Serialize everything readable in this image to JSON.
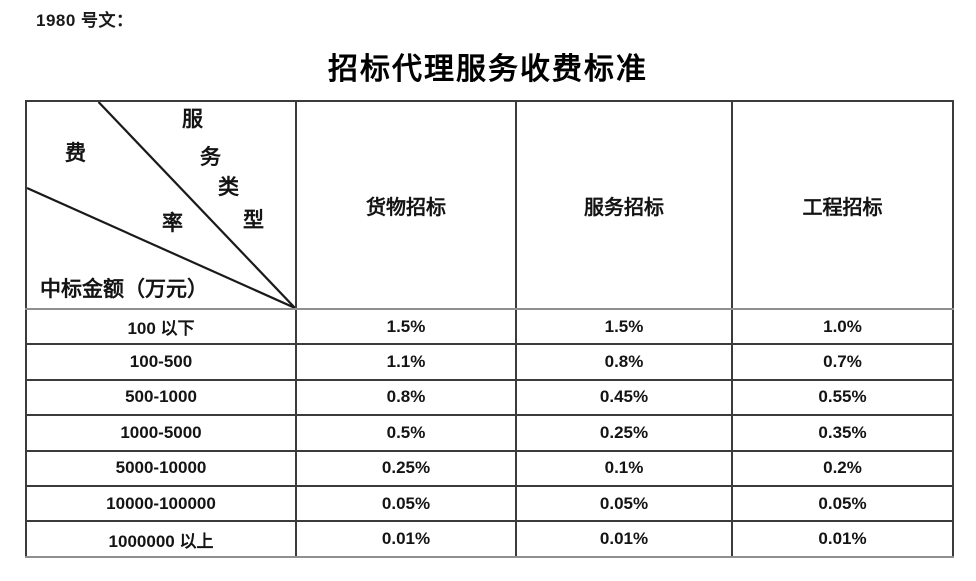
{
  "page": {
    "doc_label": "1980 号文：",
    "title": "招标代理服务收费标准"
  },
  "table": {
    "corner": {
      "service_type_chars": [
        "服",
        "务",
        "类",
        "型"
      ],
      "rate_chars": [
        "费",
        "率"
      ],
      "amount_label": "中标金额（万元）"
    },
    "column_headers": [
      "货物招标",
      "服务招标",
      "工程招标"
    ],
    "rows": [
      {
        "range": "100 以下",
        "values": [
          "1.5%",
          "1.5%",
          "1.0%"
        ]
      },
      {
        "range": "100-500",
        "values": [
          "1.1%",
          "0.8%",
          "0.7%"
        ]
      },
      {
        "range": "500-1000",
        "values": [
          "0.8%",
          "0.45%",
          "0.55%"
        ]
      },
      {
        "range": "1000-5000",
        "values": [
          "0.5%",
          "0.25%",
          "0.35%"
        ]
      },
      {
        "range": "5000-10000",
        "values": [
          "0.25%",
          "0.1%",
          "0.2%"
        ]
      },
      {
        "range": "10000-100000",
        "values": [
          "0.05%",
          "0.05%",
          "0.05%"
        ]
      },
      {
        "range": "1000000 以上",
        "values": [
          "0.01%",
          "0.01%",
          "0.01%"
        ]
      }
    ]
  },
  "colors": {
    "border_dark": "#3b3b3b",
    "border_gray": "#8f8f8f",
    "text": "#141414"
  }
}
